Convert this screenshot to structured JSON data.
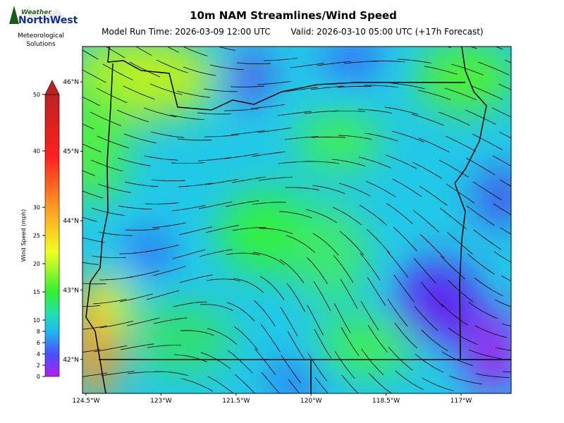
{
  "header": {
    "title": "10m NAM Streamlines/Wind Speed",
    "model_run": "Model Run Time: 2026-03-09 12:00 UTC",
    "valid": "Valid: 2026-03-10 05:00 UTC  (+17h Forecast)"
  },
  "logo": {
    "brand_top": "Weather",
    "brand_main": "NorthWest",
    "tagline_1": "Meteorological",
    "tagline_2": "Solutions"
  },
  "map": {
    "xlim": [
      -124.57,
      -116.0
    ],
    "ylim": [
      41.51,
      46.51
    ],
    "xticks": [
      {
        "value": -124.5,
        "label": "124.5°W"
      },
      {
        "value": -123,
        "label": "123°W"
      },
      {
        "value": -121.5,
        "label": "121.5°W"
      },
      {
        "value": -120,
        "label": "120°W"
      },
      {
        "value": -118.5,
        "label": "118.5°W"
      },
      {
        "value": -117,
        "label": "117°W"
      }
    ],
    "yticks": [
      {
        "value": 42,
        "label": "42°N"
      },
      {
        "value": 43,
        "label": "43°N"
      },
      {
        "value": 44,
        "label": "44°N"
      },
      {
        "value": 45,
        "label": "45°N"
      },
      {
        "value": 46,
        "label": "46°N"
      }
    ]
  },
  "colorbar": {
    "label": "Wind Speed (mph)",
    "lim": [
      0,
      50
    ],
    "ticks": [
      0,
      2,
      4,
      6,
      8,
      10,
      15,
      20,
      25,
      30,
      40,
      50
    ]
  }
}
